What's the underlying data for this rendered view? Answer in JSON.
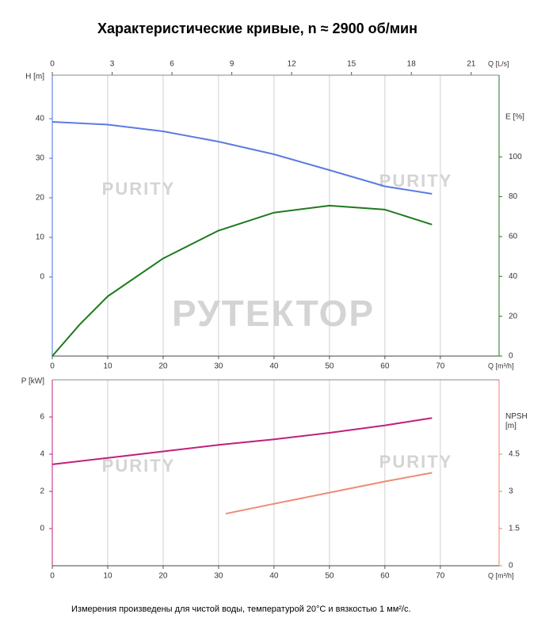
{
  "title": "Характеристические кривые, n ≈ 2900 об/мин",
  "note": "Измерения произведены для чистой воды, температурой 20°C и вязкостью 1 мм²/с.",
  "watermarks": [
    "РУТЕКТОР",
    "PURITY",
    "PURITY",
    "PURITY",
    "PURITY"
  ],
  "chart_data": [
    {
      "type": "line",
      "xlabel": "Q [m³/h]",
      "xlim": [
        0,
        80.6
      ],
      "xticks": [
        0,
        10,
        20,
        30,
        40,
        50,
        60,
        70
      ],
      "x2label": "Q [L/s]",
      "x2lim": [
        0,
        22.4
      ],
      "x2ticks": [
        0,
        3,
        6,
        9,
        12,
        15,
        18,
        21
      ],
      "ylabel": "H [m]",
      "ylabel_color": "#4a6fdc",
      "ylim": [
        -20,
        51
      ],
      "yticks": [
        0,
        10,
        20,
        30,
        40
      ],
      "y2label": "E [%]",
      "y2label_color": "#1e7a1e",
      "y2lim": [
        0,
        141
      ],
      "y2ticks": [
        0,
        20,
        40,
        60,
        80,
        100
      ],
      "grid": true,
      "series": [
        {
          "color": "#5b7be0",
          "x": [
            0,
            10,
            20,
            30,
            40,
            50,
            60,
            68.5
          ],
          "values": [
            39.2,
            38.5,
            36.8,
            34.2,
            31,
            27,
            22.9,
            21
          ]
        },
        {
          "color": "#1e7a1e",
          "axis": "y2",
          "x": [
            0,
            5,
            10,
            20,
            30,
            40,
            50,
            60,
            68.5
          ],
          "values": [
            0,
            16,
            30,
            49,
            63,
            72,
            75.5,
            73.5,
            66
          ]
        }
      ]
    },
    {
      "type": "line",
      "xlabel": "Q [m³/h]",
      "xlim": [
        0,
        80.6
      ],
      "xticks": [
        0,
        10,
        20,
        30,
        40,
        50,
        60,
        70
      ],
      "ylabel": "P [kW]",
      "ylabel_color": "#c0207a",
      "ylim": [
        -2,
        8
      ],
      "yticks": [
        0,
        2,
        4,
        6
      ],
      "y2label": "NPSH [m]",
      "y2label_color": "#f07f6a",
      "y2lim": [
        0,
        7.5
      ],
      "y2ticks": [
        0,
        1.5,
        3,
        4.5
      ],
      "grid": true,
      "series": [
        {
          "color": "#c0207a",
          "x": [
            0,
            10,
            20,
            30,
            40,
            50,
            60,
            68.5
          ],
          "values": [
            3.45,
            3.8,
            4.15,
            4.5,
            4.8,
            5.15,
            5.55,
            5.95
          ]
        },
        {
          "color": "#f08a78",
          "axis": "y2",
          "x": [
            31.3,
            40,
            50,
            60,
            68.5
          ],
          "values": [
            2.1,
            2.5,
            2.95,
            3.4,
            3.75
          ]
        }
      ]
    }
  ]
}
